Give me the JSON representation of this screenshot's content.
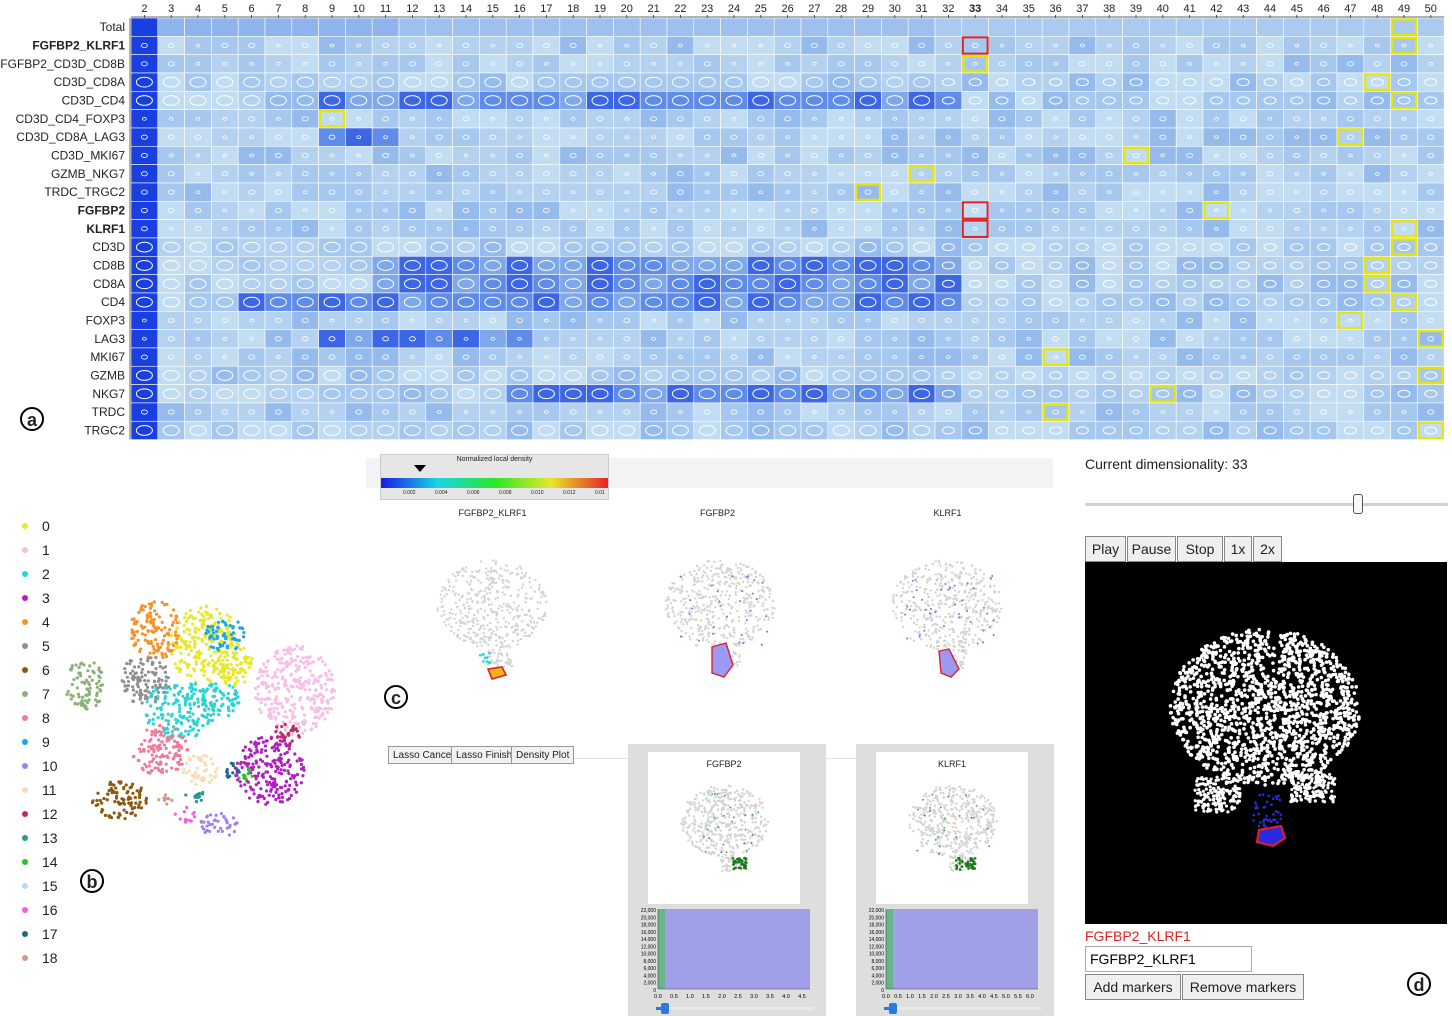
{
  "heatmap": {
    "columns": [
      "2",
      "3",
      "4",
      "5",
      "6",
      "7",
      "8",
      "9",
      "10",
      "11",
      "12",
      "13",
      "14",
      "15",
      "16",
      "17",
      "18",
      "19",
      "20",
      "21",
      "22",
      "23",
      "24",
      "25",
      "26",
      "27",
      "28",
      "29",
      "30",
      "31",
      "32",
      "33",
      "34",
      "35",
      "36",
      "37",
      "38",
      "39",
      "40",
      "41",
      "42",
      "43",
      "44",
      "45",
      "46",
      "47",
      "48",
      "49",
      "50"
    ],
    "highlight_column": "33",
    "rows": [
      {
        "label": "Total",
        "bold": false
      },
      {
        "label": "FGFBP2_KLRF1",
        "bold": true
      },
      {
        "label": "FGFBP2_CD3D_CD8B",
        "bold": false
      },
      {
        "label": "CD3D_CD8A",
        "bold": false
      },
      {
        "label": "CD3D_CD4",
        "bold": false
      },
      {
        "label": "CD3D_CD4_FOXP3",
        "bold": false
      },
      {
        "label": "CD3D_CD8A_LAG3",
        "bold": false
      },
      {
        "label": "CD3D_MKI67",
        "bold": false
      },
      {
        "label": "GZMB_NKG7",
        "bold": false
      },
      {
        "label": "TRDC_TRGC2",
        "bold": false
      },
      {
        "label": "FGFBP2",
        "bold": true
      },
      {
        "label": "KLRF1",
        "bold": true
      },
      {
        "label": "CD3D",
        "bold": false
      },
      {
        "label": "CD8B",
        "bold": false
      },
      {
        "label": "CD8A",
        "bold": false
      },
      {
        "label": "CD4",
        "bold": false
      },
      {
        "label": "FOXP3",
        "bold": false
      },
      {
        "label": "LAG3",
        "bold": false
      },
      {
        "label": "MKI67",
        "bold": false
      },
      {
        "label": "GZMB",
        "bold": false
      },
      {
        "label": "NKG7",
        "bold": false
      },
      {
        "label": "TRDC",
        "bold": false
      },
      {
        "label": "TRGC2",
        "bold": false
      }
    ],
    "yellow_boxes": [
      {
        "row": 0,
        "col": "49"
      },
      {
        "row": 1,
        "col": "49"
      },
      {
        "row": 2,
        "col": "33"
      },
      {
        "row": 3,
        "col": "48"
      },
      {
        "row": 4,
        "col": "49"
      },
      {
        "row": 5,
        "col": "9"
      },
      {
        "row": 6,
        "col": "47"
      },
      {
        "row": 7,
        "col": "39"
      },
      {
        "row": 8,
        "col": "31"
      },
      {
        "row": 9,
        "col": "29"
      },
      {
        "row": 10,
        "col": "42"
      },
      {
        "row": 11,
        "col": "49"
      },
      {
        "row": 12,
        "col": "49"
      },
      {
        "row": 13,
        "col": "48"
      },
      {
        "row": 14,
        "col": "48"
      },
      {
        "row": 15,
        "col": "49"
      },
      {
        "row": 16,
        "col": "47"
      },
      {
        "row": 17,
        "col": "50"
      },
      {
        "row": 18,
        "col": "36"
      },
      {
        "row": 19,
        "col": "50"
      },
      {
        "row": 20,
        "col": "40"
      },
      {
        "row": 21,
        "col": "36"
      },
      {
        "row": 22,
        "col": "50"
      }
    ],
    "red_boxes": [
      {
        "row": 1,
        "col": "33"
      },
      {
        "row": 10,
        "col": "33"
      },
      {
        "row": 11,
        "col": "33"
      }
    ],
    "colors": {
      "low": "#bcd8f0",
      "high": "#1f3fe0",
      "total_row": "#a9c9f0",
      "first_col": "#1a3fe0",
      "yellow": "#e6e600",
      "red": "#dd2222"
    }
  },
  "panel_labels": {
    "a": "a",
    "b": "b",
    "c": "c",
    "d": "d"
  },
  "clusters": {
    "items": [
      {
        "label": "0",
        "color": "#e8e82a"
      },
      {
        "label": "1",
        "color": "#f5c0e6"
      },
      {
        "label": "2",
        "color": "#2ad4d4"
      },
      {
        "label": "3",
        "color": "#b020c0"
      },
      {
        "label": "4",
        "color": "#f5922a"
      },
      {
        "label": "5",
        "color": "#909090"
      },
      {
        "label": "6",
        "color": "#8a5a10"
      },
      {
        "label": "7",
        "color": "#8cb07a"
      },
      {
        "label": "8",
        "color": "#f07a9a"
      },
      {
        "label": "9",
        "color": "#1aa6e8"
      },
      {
        "label": "10",
        "color": "#a080f0"
      },
      {
        "label": "11",
        "color": "#f8dcb8"
      },
      {
        "label": "12",
        "color": "#c02a6a"
      },
      {
        "label": "13",
        "color": "#2a9a8a"
      },
      {
        "label": "14",
        "color": "#2ac02a"
      },
      {
        "label": "15",
        "color": "#bcd8f0"
      },
      {
        "label": "16",
        "color": "#f060e0"
      },
      {
        "label": "17",
        "color": "#1a6a8a"
      },
      {
        "label": "18",
        "color": "#d09a8a"
      }
    ]
  },
  "density": {
    "title": "Normalized local density",
    "ticks": [
      "0.002",
      "0.004",
      "0.006",
      "0.008",
      "0.010",
      "0.012",
      "0.01"
    ],
    "plots": [
      "FGFBP2_KLRF1",
      "FGFBP2",
      "KLRF1"
    ]
  },
  "lasso": {
    "cancel": "Lasso Cancel",
    "finish": "Lasso Finish",
    "density": "Density Plot"
  },
  "marker_cards": [
    {
      "title": "FGFBP2",
      "yticks": [
        "22,000",
        "20,000",
        "18,000",
        "16,000",
        "14,000",
        "12,000",
        "10,000",
        "8,000",
        "6,000",
        "4,000",
        "2,000",
        "0"
      ],
      "xticks": [
        "0.0",
        "0.5",
        "1.0",
        "1.5",
        "2.0",
        "2.5",
        "3.0",
        "3.5",
        "4.0",
        "4.5"
      ]
    },
    {
      "title": "KLRF1",
      "yticks": [
        "22,000",
        "20,000",
        "18,000",
        "16,000",
        "14,000",
        "12,000",
        "10,000",
        "8,000",
        "6,000",
        "4,000",
        "2,000",
        "0"
      ],
      "xticks": [
        "0.0",
        "0.5",
        "1.0",
        "1.5",
        "2.0",
        "2.5",
        "3.0",
        "3.5",
        "4.0",
        "4.5",
        "5.0",
        "5.5",
        "6.0"
      ]
    }
  ],
  "panel_d": {
    "dimensionality_label": "Current dimensionality: 33",
    "slider_value": 33,
    "slider_min": 2,
    "slider_max": 50,
    "buttons": {
      "play": "Play",
      "pause": "Pause",
      "stop": "Stop",
      "x1": "1x",
      "x2": "2x"
    },
    "selected_marker": "FGFBP2_KLRF1",
    "marker_input_value": "FGFBP2_KLRF1",
    "add_markers": "Add markers",
    "remove_markers": "Remove markers"
  }
}
